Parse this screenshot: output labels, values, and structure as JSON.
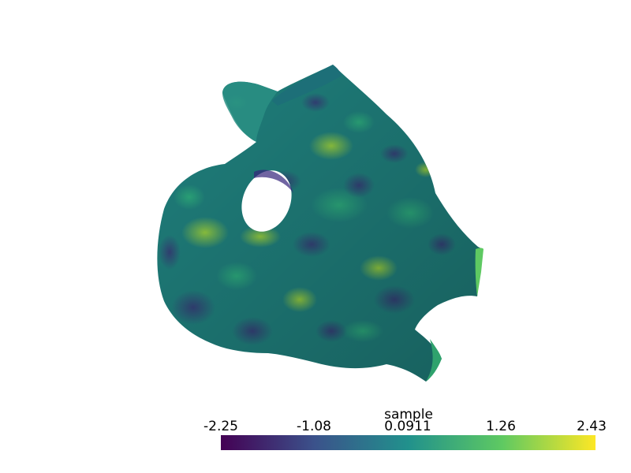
{
  "scalar_bar": {
    "title": "sample",
    "ticks": [
      {
        "label": "-2.25",
        "value": -2.25
      },
      {
        "label": "-1.08",
        "value": -1.08
      },
      {
        "label": "0.0911",
        "value": 0.0911
      },
      {
        "label": "1.26",
        "value": 1.26
      },
      {
        "label": "2.43",
        "value": 2.43
      }
    ],
    "range": [
      -2.25,
      2.43
    ],
    "colormap": "viridis",
    "colormap_stops": [
      "#440154",
      "#3b528b",
      "#21918c",
      "#5ec962",
      "#fde725"
    ]
  },
  "scene": {
    "background_color": "#ffffff",
    "surface_colormap": "viridis"
  }
}
